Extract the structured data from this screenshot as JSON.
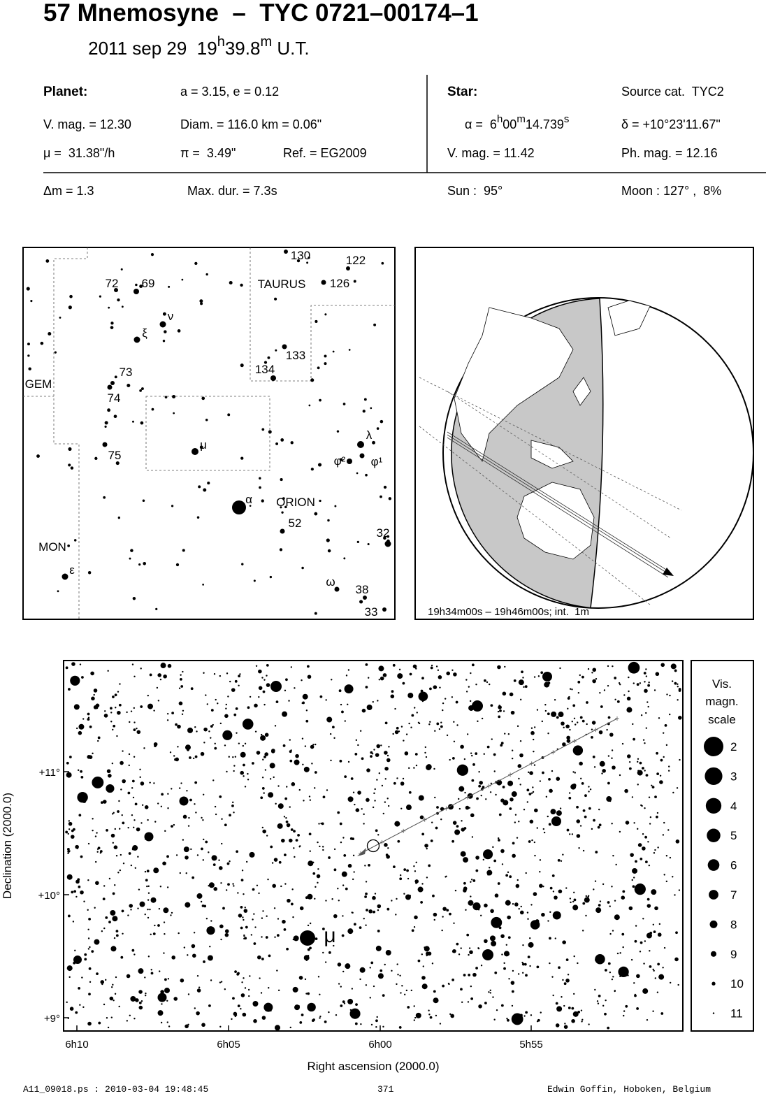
{
  "header": {
    "title": "57 Mnemosyne  –  TYC 0721–00174–1",
    "date": [
      "2011 sep 29  19",
      "h",
      "39.8",
      "m",
      " U.T."
    ]
  },
  "planet": {
    "label": "Planet:",
    "orbit": "a = 3.15, e = 0.12",
    "vmag": "V. mag. = 12.30",
    "diam": "Diam. = 116.0 km = 0.06\"",
    "motion": "μ =  31.38\"/h",
    "parallax": "π =  3.49\"",
    "ref": "Ref. = EG2009"
  },
  "star": {
    "label": "Star:",
    "source": "Source cat.  TYC2",
    "ra": [
      "α =  6",
      "h",
      "00",
      "m",
      "14.739",
      "s"
    ],
    "dec": "δ = +10°23'11.67\"",
    "vmag": "V. mag. = 11.42",
    "phmag": "Ph. mag. = 12.16"
  },
  "event": {
    "dm": "Δm = 1.3",
    "maxdur": "Max. dur. = 7.3s",
    "sun": "Sun :  95°",
    "moon": "Moon : 127° ,  8%"
  },
  "finder": {
    "labels": [
      "130",
      "122",
      "TAURUS",
      "126",
      "72",
      "69",
      "ν",
      "ξ",
      "133",
      "134",
      "GEM",
      "73",
      "74",
      "75",
      "μ",
      "λ",
      "φ²",
      "φ¹",
      "α",
      "ORION",
      "52",
      "32",
      "MON",
      "ε",
      "ω",
      "38",
      "33"
    ]
  },
  "globe": {
    "caption": "19h34m00s – 19h46m00s; int.  1m"
  },
  "detail": {
    "y_title": "Declination (2000.0)",
    "x_title": "Right ascension (2000.0)",
    "y_ticks": [
      "+11°",
      "+10°",
      "+9°"
    ],
    "x_ticks": [
      "6h10",
      "6h05",
      "6h00",
      "5h55"
    ],
    "star_label": "μ",
    "legend_title": [
      "Vis.",
      "magn.",
      "scale"
    ],
    "magnitudes": [
      2,
      3,
      4,
      5,
      6,
      7,
      8,
      9,
      10,
      11
    ]
  },
  "footer": {
    "file": "A11_09018.ps : 2010-03-04 19:48:45",
    "page": "371",
    "author": "Edwin Goffin, Hoboken, Belgium"
  }
}
